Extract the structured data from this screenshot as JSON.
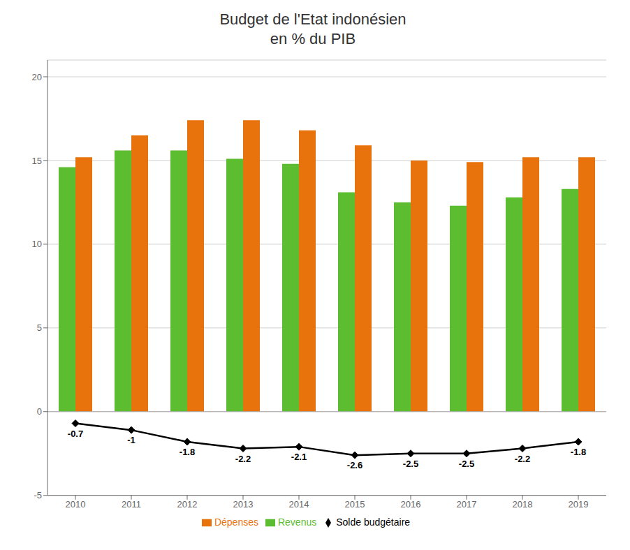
{
  "chart_data": {
    "type": "bar",
    "title": "Budget de l'Etat indonésien\nen % du PIB",
    "categories": [
      "2010",
      "2011",
      "2012",
      "2013",
      "2014",
      "2015",
      "2016",
      "2017",
      "2018",
      "2019"
    ],
    "series": [
      {
        "name": "Revenus",
        "type": "bar",
        "color": "#5BBD2F",
        "values": [
          14.6,
          15.6,
          15.6,
          15.1,
          14.8,
          13.1,
          12.5,
          12.3,
          12.8,
          13.3
        ]
      },
      {
        "name": "Dépenses",
        "type": "bar",
        "color": "#E8720C",
        "values": [
          15.2,
          16.5,
          17.4,
          17.4,
          16.8,
          15.9,
          15.0,
          14.9,
          15.2,
          15.2
        ]
      },
      {
        "name": "Solde budgétaire",
        "type": "line",
        "color": "#000000",
        "marker": "diamond",
        "data_labels": true,
        "values": [
          -0.7,
          -1.1,
          -1.8,
          -2.2,
          -2.1,
          -2.6,
          -2.5,
          -2.5,
          -2.2,
          -1.8
        ],
        "value_labels": [
          "-0.7",
          "-1",
          "-1.8",
          "-2.2",
          "-2.1",
          "-2.6",
          "-2.5",
          "-2.5",
          "-2.2",
          "-1.8"
        ]
      }
    ],
    "ylim": [
      -5,
      21
    ],
    "yticks": [
      -5,
      0,
      5,
      10,
      15,
      20
    ],
    "grid": true,
    "legend": "bottom"
  }
}
